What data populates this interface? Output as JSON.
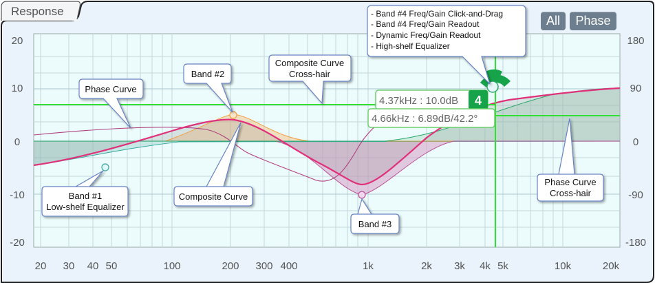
{
  "panel": {
    "title": "Response"
  },
  "toolbar": {
    "all_label": "All",
    "phase_label": "Phase"
  },
  "y_axis_left": [
    "20",
    "10",
    "0",
    "-10",
    "-20"
  ],
  "y_axis_right": [
    "180",
    "90",
    "0",
    "-90",
    "-180"
  ],
  "x_axis": [
    "20",
    "30",
    "40",
    "50",
    "100",
    "200",
    "300",
    "400",
    "1k",
    "2k",
    "3k",
    "4k",
    "5k",
    "10k",
    "20k"
  ],
  "readouts": {
    "band4_value": "4.37kHz : 10.0dB",
    "band4_badge": "4",
    "dynamic_value": "4.66kHz : 6.89dB/42.2°"
  },
  "callouts": {
    "band4_lines": [
      "- Band #4 Freq/Gain Click-and-Drag",
      "- Band #4 Freq/Gain Readout",
      "- Dynamic Freq/Gain Readout",
      "- High-shelf Equalizer"
    ],
    "composite_crosshair": [
      "Composite Curve",
      "Cross-hair"
    ],
    "band2": "Band #2",
    "phase_curve": "Phase Curve",
    "band1": [
      "Band #1",
      "Low-shelf Equalizer"
    ],
    "composite_curve": "Composite Curve",
    "band3": "Band #3",
    "phase_crosshair": [
      "Phase Curve",
      "Cross-hair"
    ]
  },
  "colors": {
    "plot_bg": "#ecfbfb",
    "composite": "#e0307a",
    "band2": "#f0a040",
    "band1": "#3aa8a0",
    "band4": "#2aa868",
    "phase": "#b04080",
    "crosshair": "#30e030"
  }
}
